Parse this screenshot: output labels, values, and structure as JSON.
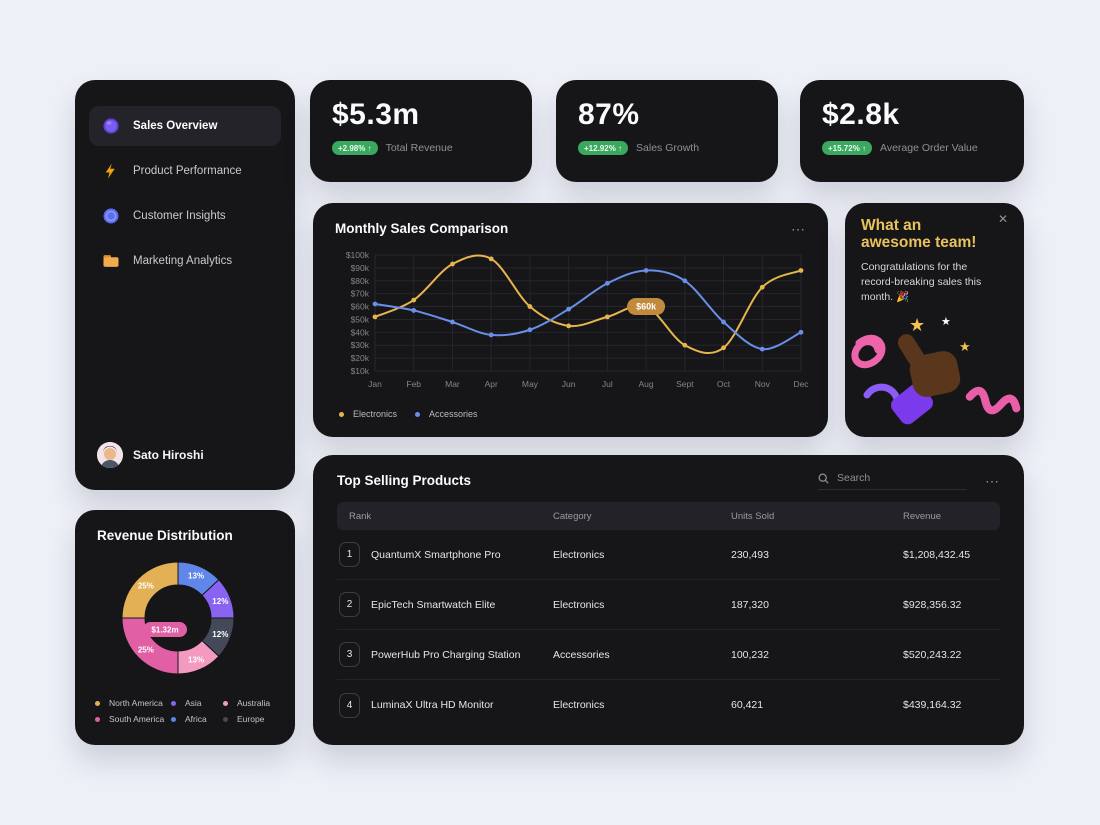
{
  "colors": {
    "badge_green": "#3aa85f",
    "accent_gold": "#e8c25a"
  },
  "sidebar": {
    "items": [
      {
        "label": "Sales Overview",
        "icon": "sales-overview-icon",
        "active": true
      },
      {
        "label": "Product Performance",
        "icon": "product-performance-icon",
        "active": false
      },
      {
        "label": "Customer Insights",
        "icon": "customer-insights-icon",
        "active": false
      },
      {
        "label": "Marketing Analytics",
        "icon": "marketing-analytics-icon",
        "active": false
      }
    ],
    "user": {
      "name": "Sato Hiroshi"
    }
  },
  "kpis": [
    {
      "value": "$5.3m",
      "change": "+2.98% ↑",
      "label": "Total Revenue"
    },
    {
      "value": "87%",
      "change": "+12.92% ↑",
      "label": "Sales Growth"
    },
    {
      "value": "$2.8k",
      "change": "+15.72% ↑",
      "label": "Average Order Value"
    }
  ],
  "team_card": {
    "title": "What an awesome team!",
    "body": "Congratulations for the record-breaking sales this month. 🎉",
    "close_label": "✕"
  },
  "table": {
    "title": "Top Selling Products",
    "search_placeholder": "Search",
    "menu_label": "⋯",
    "headers": [
      "Rank",
      "Category",
      "Units Sold",
      "Revenue"
    ],
    "rows": [
      {
        "rank": "1",
        "product": "QuantumX Smartphone Pro",
        "category": "Electronics",
        "units": "230,493",
        "revenue": "$1,208,432.45"
      },
      {
        "rank": "2",
        "product": "EpicTech Smartwatch Elite",
        "category": "Electronics",
        "units": "187,320",
        "revenue": "$928,356.32"
      },
      {
        "rank": "3",
        "product": "PowerHub Pro Charging Station",
        "category": "Accessories",
        "units": "100,232",
        "revenue": "$520,243.22"
      },
      {
        "rank": "4",
        "product": "LuminaX Ultra HD Monitor",
        "category": "Electronics",
        "units": "60,421",
        "revenue": "$439,164.32"
      }
    ]
  },
  "chart_data": [
    {
      "type": "line",
      "title": "Monthly Sales Comparison",
      "menu_label": "⋯",
      "x": [
        "Jan",
        "Feb",
        "Mar",
        "Apr",
        "May",
        "Jun",
        "Jul",
        "Aug",
        "Sept",
        "Oct",
        "Nov",
        "Dec"
      ],
      "y_ticks": [
        "$100k",
        "$90k",
        "$80k",
        "$70k",
        "$60k",
        "$50k",
        "$40k",
        "$30k",
        "$20k",
        "$10k"
      ],
      "ylim": [
        10,
        100
      ],
      "unit": "$k",
      "grid": true,
      "legend_position": "bottom-left",
      "series": [
        {
          "name": "Electronics",
          "color": "#e6b54c",
          "values": [
            52,
            65,
            93,
            97,
            60,
            45,
            52,
            60,
            30,
            28,
            75,
            88
          ]
        },
        {
          "name": "Accessories",
          "color": "#6a8fe8",
          "values": [
            62,
            57,
            48,
            38,
            42,
            58,
            78,
            88,
            80,
            48,
            27,
            40
          ]
        }
      ],
      "tooltip": {
        "series": "Electronics",
        "x_index": 7,
        "label": "$60k",
        "bg": "#c28a3c"
      }
    },
    {
      "type": "pie",
      "title": "Revenue Distribution",
      "center_label": "$1.32m",
      "center_label_bg": "#e05fa5",
      "segments": [
        {
          "name": "Africa",
          "value": 13,
          "color": "#5f86e8"
        },
        {
          "name": "Asia",
          "value": 12,
          "color": "#8a63f3"
        },
        {
          "name": "Europe",
          "value": 12,
          "color": "#434958"
        },
        {
          "name": "Australia",
          "value": 13,
          "color": "#f49ac1"
        },
        {
          "name": "South America",
          "value": 25,
          "color": "#e05fa5"
        },
        {
          "name": "North America",
          "value": 25,
          "color": "#e3b056"
        }
      ],
      "legend": [
        {
          "name": "North America",
          "color": "#e3b056"
        },
        {
          "name": "Asia",
          "color": "#8a63f3"
        },
        {
          "name": "Australia",
          "color": "#f49ac1"
        },
        {
          "name": "South America",
          "color": "#e05fa5"
        },
        {
          "name": "Africa",
          "color": "#5f86e8"
        },
        {
          "name": "Europe",
          "color": "#434958"
        }
      ]
    }
  ]
}
